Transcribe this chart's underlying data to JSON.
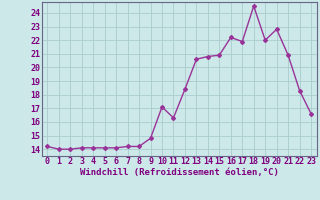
{
  "x": [
    0,
    1,
    2,
    3,
    4,
    5,
    6,
    7,
    8,
    9,
    10,
    11,
    12,
    13,
    14,
    15,
    16,
    17,
    18,
    19,
    20,
    21,
    22,
    23
  ],
  "y": [
    14.2,
    14.0,
    14.0,
    14.1,
    14.1,
    14.1,
    14.1,
    14.2,
    14.2,
    14.8,
    17.1,
    16.3,
    18.4,
    20.6,
    20.8,
    20.9,
    22.2,
    21.9,
    24.5,
    22.0,
    22.8,
    20.9,
    18.3,
    16.6
  ],
  "line_color": "#993399",
  "marker": "D",
  "marker_size": 2.0,
  "bg_color": "#cce8e8",
  "grid_color": "#aacccc",
  "xlabel": "Windchill (Refroidissement éolien,°C)",
  "xlim": [
    -0.5,
    23.5
  ],
  "ylim": [
    13.5,
    24.8
  ],
  "yticks": [
    14,
    15,
    16,
    17,
    18,
    19,
    20,
    21,
    22,
    23,
    24
  ],
  "xticks": [
    0,
    1,
    2,
    3,
    4,
    5,
    6,
    7,
    8,
    9,
    10,
    11,
    12,
    13,
    14,
    15,
    16,
    17,
    18,
    19,
    20,
    21,
    22,
    23
  ],
  "xlabel_fontsize": 6.5,
  "tick_fontsize": 6.0,
  "line_width": 1.0
}
